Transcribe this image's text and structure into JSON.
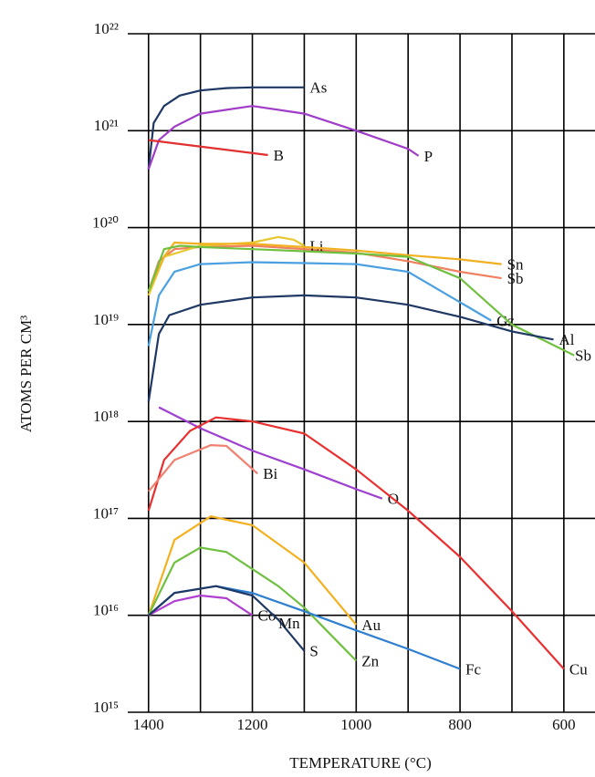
{
  "chart_data": {
    "type": "line",
    "x_label": "TEMPERATURE (°C)",
    "y_label": "ATOMS PER CM³",
    "log_y": true,
    "grid": true,
    "xlim": [
      1440,
      540
    ],
    "xticks": [
      1400,
      1200,
      1000,
      800,
      600
    ],
    "x_minor_ticks": [
      1300,
      1100,
      900,
      700
    ],
    "ylim": [
      1000000000000000.0,
      1e+22
    ],
    "yticks": [
      {
        "value": 1000000000000000.0,
        "label": "10¹⁵"
      },
      {
        "value": 1e+16,
        "label": "10¹⁶"
      },
      {
        "value": 1e+17,
        "label": "10¹⁷"
      },
      {
        "value": 1e+18,
        "label": "10¹⁸"
      },
      {
        "value": 1e+19,
        "label": "10¹⁹"
      },
      {
        "value": 1e+20,
        "label": "10²⁰"
      },
      {
        "value": 1e+21,
        "label": "10²¹"
      },
      {
        "value": 1e+22,
        "label": "10²²"
      }
    ],
    "series": [
      {
        "name": "As",
        "color": "#1f3864",
        "x": [
          1400,
          1390,
          1370,
          1340,
          1300,
          1250,
          1200,
          1100
        ],
        "values": [
          4e+20,
          1.2e+21,
          1.8e+21,
          2.3e+21,
          2.6e+21,
          2.75e+21,
          2.8e+21,
          2.8e+21
        ]
      },
      {
        "name": "P",
        "color": "#a03cc8",
        "x": [
          1400,
          1380,
          1350,
          1300,
          1200,
          1100,
          1000,
          900,
          880
        ],
        "values": [
          4e+20,
          8e+20,
          1.1e+21,
          1.5e+21,
          1.8e+21,
          1.5e+21,
          1e+21,
          6.5e+20,
          5.5e+20
        ]
      },
      {
        "name": "B",
        "color": "#e03030",
        "x": [
          1400,
          1170
        ],
        "values": [
          8e+20,
          5.6e+20
        ]
      },
      {
        "name": "Sb",
        "color": "#f08060",
        "x": [
          1400,
          1380,
          1350,
          1300,
          1200,
          1100,
          1000,
          900,
          800,
          720
        ],
        "values": [
          2.2e+19,
          4.5e+19,
          6e+19,
          6.3e+19,
          6.5e+19,
          6e+19,
          5.5e+19,
          4.5e+19,
          3.5e+19,
          3e+19
        ]
      },
      {
        "name": "Li",
        "color": "#e8c830",
        "x": [
          1400,
          1370,
          1300,
          1200,
          1150,
          1120,
          1100
        ],
        "values": [
          2e+19,
          5e+19,
          6.5e+19,
          7e+19,
          8e+19,
          7.5e+19,
          6.5e+19
        ]
      },
      {
        "name": "Sn",
        "color": "#f0b020",
        "x": [
          1400,
          1370,
          1350,
          1300,
          1200,
          1100,
          1000,
          900,
          800,
          720
        ],
        "values": [
          2.2e+19,
          5e+19,
          7e+19,
          6.8e+19,
          6.8e+19,
          6.3e+19,
          5.8e+19,
          5.2e+19,
          4.7e+19,
          4.2e+19
        ]
      },
      {
        "name": "Gz",
        "color": "#4aa0e0",
        "x": [
          1400,
          1380,
          1350,
          1300,
          1200,
          1100,
          1000,
          900,
          800,
          740
        ],
        "values": [
          6e+18,
          2e+19,
          3.5e+19,
          4.2e+19,
          4.4e+19,
          4.3e+19,
          4.2e+19,
          3.5e+19,
          1.7e+19,
          1.1e+19
        ]
      },
      {
        "name": "Sb",
        "color": "#70c040",
        "x": [
          1400,
          1370,
          1340,
          1300,
          1200,
          1100,
          1000,
          900,
          800,
          700,
          580
        ],
        "values": [
          2.2e+19,
          6e+19,
          6.5e+19,
          6.3e+19,
          6e+19,
          5.7e+19,
          5.4e+19,
          5e+19,
          3e+19,
          1e+19,
          4.8e+18
        ]
      },
      {
        "name": "Al",
        "color": "#1f3864",
        "x": [
          1400,
          1380,
          1360,
          1300,
          1200,
          1100,
          1000,
          900,
          800,
          700,
          620
        ],
        "values": [
          1.6e+18,
          8e+18,
          1.25e+19,
          1.6e+19,
          1.9e+19,
          2e+19,
          1.9e+19,
          1.6e+19,
          1.2e+19,
          8.5e+18,
          7e+18
        ]
      },
      {
        "name": "O",
        "color": "#a040d0",
        "x": [
          1380,
          1300,
          1200,
          1100,
          1000,
          950
        ],
        "values": [
          1.4e+18,
          8.5e+17,
          5e+17,
          3.2e+17,
          2e+17,
          1.6e+17
        ]
      },
      {
        "name": "Cu",
        "color": "#e83030",
        "x": [
          1400,
          1370,
          1320,
          1270,
          1200,
          1100,
          1000,
          900,
          800,
          700,
          600
        ],
        "values": [
          1.2e+17,
          4e+17,
          8e+17,
          1.1e+18,
          1e+18,
          7.5e+17,
          3.2e+17,
          1.2e+17,
          4e+16,
          1.1e+16,
          2800000000000000.0
        ]
      },
      {
        "name": "Bi",
        "color": "#f08070",
        "x": [
          1400,
          1350,
          1280,
          1250,
          1190
        ],
        "values": [
          1.9e+17,
          4e+17,
          5.7e+17,
          5.6e+17,
          2.9e+17
        ]
      },
      {
        "name": "Au",
        "color": "#f5b020",
        "x": [
          1400,
          1350,
          1280,
          1200,
          1100,
          1000
        ],
        "values": [
          1e+16,
          6e+16,
          1.05e+17,
          8.5e+16,
          3.5e+16,
          8000000000000000.0
        ]
      },
      {
        "name": "Zn",
        "color": "#70c040",
        "x": [
          1400,
          1350,
          1300,
          1250,
          1150,
          1100,
          1000
        ],
        "values": [
          1e+16,
          3.5e+16,
          5e+16,
          4.5e+16,
          2e+16,
          1.2e+16,
          3400000000000000.0
        ]
      },
      {
        "name": "Fc",
        "color": "#2e7fd0",
        "x": [
          1400,
          1350,
          1270,
          1200,
          1100,
          1000,
          900,
          800
        ],
        "values": [
          1e+16,
          1.7e+16,
          2e+16,
          1.7e+16,
          1.1e+16,
          7000000000000000.0,
          4500000000000000.0,
          2800000000000000.0
        ]
      },
      {
        "name": "Co",
        "color": "#b040d0",
        "x": [
          1400,
          1350,
          1300,
          1250,
          1200
        ],
        "values": [
          1e+16,
          1.4e+16,
          1.6e+16,
          1.5e+16,
          1e+16
        ]
      },
      {
        "name": "S",
        "color": "#1f3864",
        "x": [
          1400,
          1350,
          1270,
          1200,
          1150,
          1100
        ],
        "values": [
          1e+16,
          1.7e+16,
          2e+16,
          1.6e+16,
          9000000000000000.0,
          4300000000000000.0
        ]
      }
    ],
    "annotations": [
      {
        "text": "Mn",
        "x": 1150,
        "y": 8000000000000000.0
      }
    ]
  }
}
